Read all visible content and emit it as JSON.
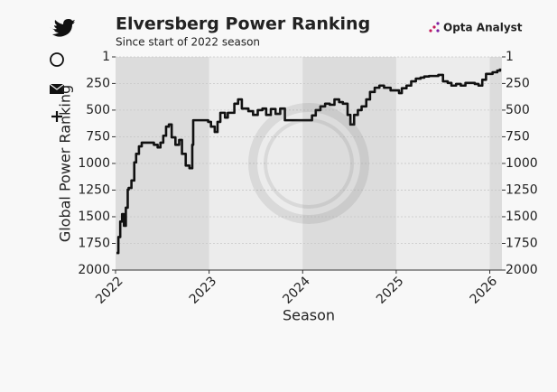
{
  "chart_data": {
    "type": "line",
    "title": "Elversberg Power Ranking",
    "subtitle": "Since start of 2022 season",
    "brand": "Opta Analyst",
    "xlabel": "Season",
    "ylabel": "Global Power Ranking",
    "step": true,
    "color": "#111111",
    "x": [
      2022.01,
      2022.03,
      2022.05,
      2022.07,
      2022.09,
      2022.11,
      2022.13,
      2022.14,
      2022.17,
      2022.2,
      2022.22,
      2022.25,
      2022.28,
      2022.34,
      2022.41,
      2022.45,
      2022.48,
      2022.51,
      2022.54,
      2022.57,
      2022.6,
      2022.64,
      2022.68,
      2022.71,
      2022.75,
      2022.79,
      2022.82,
      2022.83,
      2022.94,
      2022.99,
      2023.02,
      2023.06,
      2023.09,
      2023.12,
      2023.17,
      2023.2,
      2023.27,
      2023.31,
      2023.35,
      2023.42,
      2023.47,
      2023.52,
      2023.57,
      2023.61,
      2023.66,
      2023.71,
      2023.76,
      2023.81,
      2024.05,
      2024.1,
      2024.14,
      2024.19,
      2024.24,
      2024.29,
      2024.34,
      2024.39,
      2024.43,
      2024.48,
      2024.51,
      2024.55,
      2024.59,
      2024.63,
      2024.68,
      2024.72,
      2024.77,
      2024.82,
      2024.87,
      2024.94,
      2025.0,
      2025.03,
      2025.06,
      2025.11,
      2025.16,
      2025.21,
      2025.26,
      2025.3,
      2025.35,
      2025.45,
      2025.5,
      2025.55,
      2025.59,
      2025.64,
      2025.69,
      2025.74,
      2025.79,
      2025.84,
      2025.88,
      2025.92,
      2025.96,
      2026.03,
      2026.08,
      2026.11
    ],
    "values": [
      1840,
      1690,
      1545,
      1475,
      1585,
      1415,
      1245,
      1230,
      1160,
      990,
      910,
      840,
      805,
      805,
      825,
      850,
      805,
      740,
      655,
      635,
      755,
      825,
      780,
      910,
      1020,
      1045,
      825,
      595,
      595,
      610,
      655,
      705,
      610,
      525,
      570,
      525,
      440,
      400,
      485,
      510,
      545,
      500,
      485,
      545,
      490,
      535,
      485,
      595,
      595,
      550,
      500,
      465,
      440,
      450,
      400,
      425,
      440,
      545,
      635,
      545,
      500,
      465,
      400,
      330,
      290,
      270,
      290,
      315,
      315,
      340,
      295,
      270,
      230,
      205,
      195,
      185,
      180,
      170,
      230,
      245,
      270,
      255,
      270,
      245,
      245,
      255,
      270,
      215,
      160,
      145,
      130,
      110
    ],
    "xlim": [
      2022,
      2026.13
    ],
    "xticks": [
      2022,
      2023,
      2024,
      2025,
      2026
    ],
    "ylim": [
      1,
      2000
    ],
    "y_inverted": true,
    "yticks": [
      1,
      250,
      500,
      750,
      1000,
      1250,
      1500,
      1750,
      2000
    ],
    "y2lim": [
      1,
      2000
    ],
    "y2ticks": [
      1,
      250,
      500,
      750,
      1000,
      1250,
      1500,
      1750,
      2000
    ],
    "grid": true,
    "season_shading": true
  }
}
